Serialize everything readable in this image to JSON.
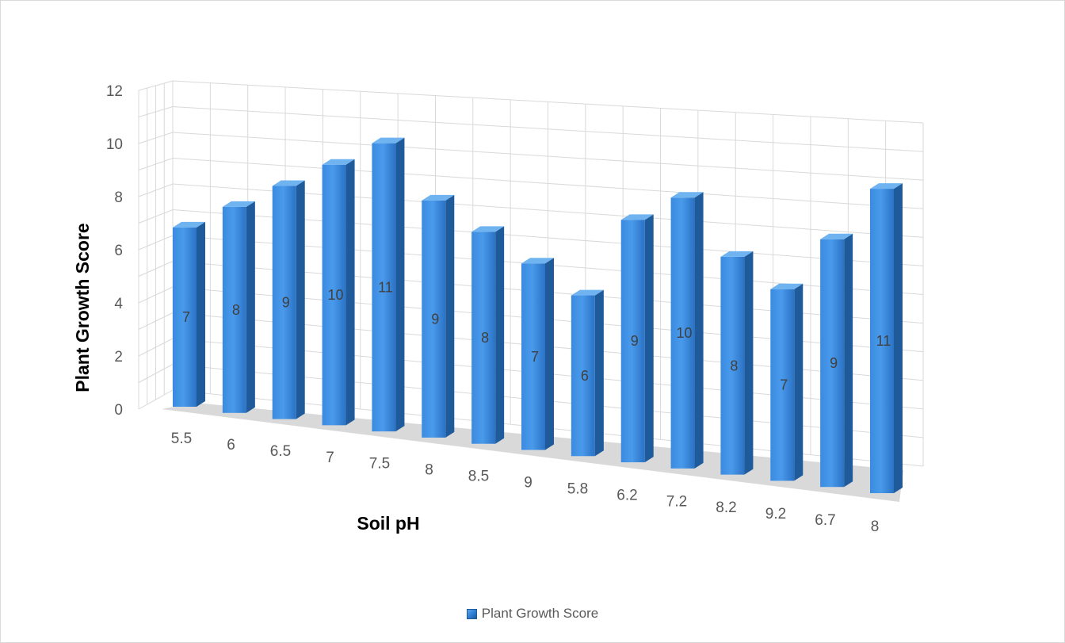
{
  "chart_data": {
    "type": "bar",
    "style": "3d-column",
    "categories": [
      "5.5",
      "6",
      "6.5",
      "7",
      "7.5",
      "8",
      "8.5",
      "9",
      "5.8",
      "6.2",
      "7.2",
      "8.2",
      "9.2",
      "6.7",
      "8"
    ],
    "series": [
      {
        "name": "Plant Growth Score",
        "values": [
          7,
          8,
          9,
          10,
          11,
          9,
          8,
          7,
          6,
          9,
          10,
          8,
          7,
          9,
          11
        ],
        "color": "#2e7bd1"
      }
    ],
    "xlabel": "Soil pH",
    "ylabel": "Plant Growth Score",
    "ylim": [
      0,
      12
    ],
    "yticks": [
      0,
      2,
      4,
      6,
      8,
      10,
      12
    ],
    "grid": true,
    "data_labels": true,
    "legend_position": "bottom"
  },
  "colors": {
    "bar_front": "#2e7bd1",
    "bar_side": "#1f5a9a",
    "bar_top": "#6fb4f0",
    "grid": "#d9d9d9",
    "floor": "#d9d9d9"
  }
}
